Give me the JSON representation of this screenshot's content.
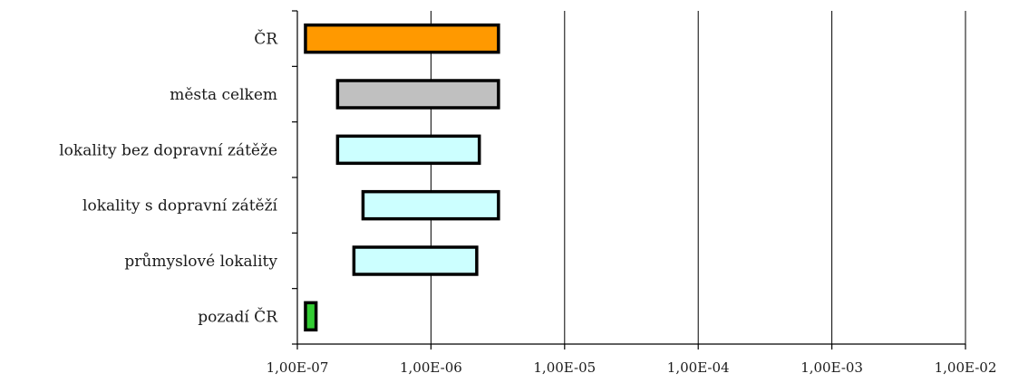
{
  "chart_data": {
    "type": "bar",
    "orientation": "horizontal",
    "subtype": "range",
    "title": "",
    "xlabel": "",
    "ylabel": "",
    "x_scale": "log",
    "xlim": [
      1e-07,
      0.01
    ],
    "grid": true,
    "categories": [
      "ČR",
      "města celkem",
      "lokality bez dopravní zátěže",
      "lokality s dopravní zátěží",
      "průmyslové lokality",
      "pozadí ČR"
    ],
    "ranges": [
      [
        1.15e-07,
        3.2e-06
      ],
      [
        2e-07,
        3.2e-06
      ],
      [
        2e-07,
        2.3e-06
      ],
      [
        3.1e-07,
        3.2e-06
      ],
      [
        2.65e-07,
        2.2e-06
      ],
      [
        1.15e-07,
        1.38e-07
      ]
    ],
    "colors": [
      "#ff9900",
      "#c0c0c0",
      "#ccffff",
      "#ccffff",
      "#ccffff",
      "#33cc33"
    ],
    "x_ticks": [
      1e-07,
      1e-06,
      1e-05,
      0.0001,
      0.001,
      0.01
    ],
    "x_tick_labels": [
      "1,00E-07",
      "1,00E-06",
      "1,00E-05",
      "1,00E-04",
      "1,00E-03",
      "1,00E-02"
    ],
    "legend": "none"
  }
}
